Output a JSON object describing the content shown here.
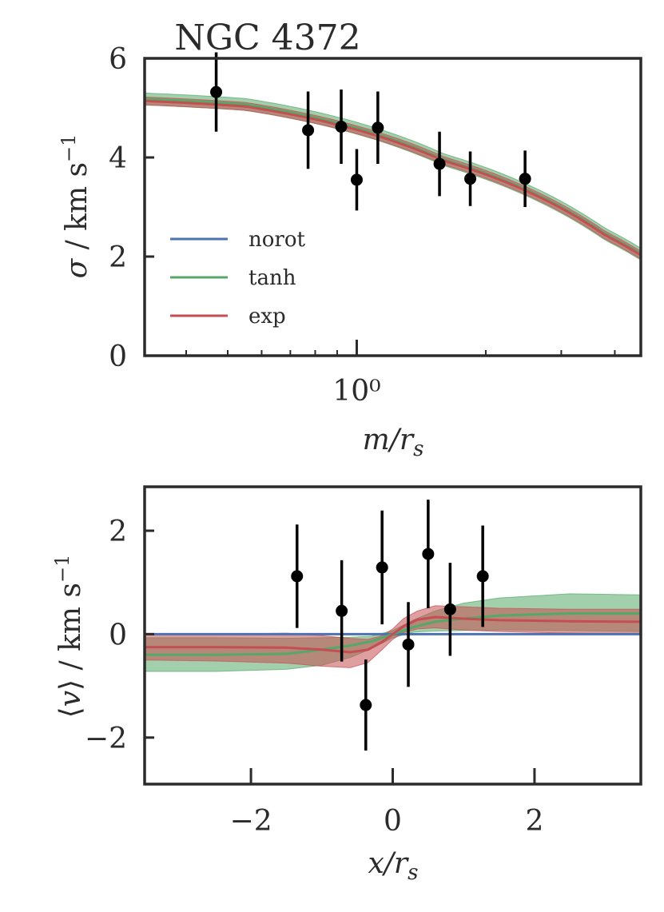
{
  "figure_title": "NGC 4372",
  "colors": {
    "norot": "#4c72b0",
    "tanh": "#55a868",
    "exp": "#c44e52",
    "axes": "#2b2b2b",
    "points": "#000000"
  },
  "chart_data": [
    {
      "type": "line",
      "title": "NGC 4372",
      "xlabel": "m/r_s",
      "ylabel": "σ / km s⁻¹",
      "xscale": "log",
      "xlim": [
        0.32,
        4.6
      ],
      "ylim": [
        0,
        6
      ],
      "x_tick_labels": [
        {
          "value": 1,
          "label": "10⁰"
        }
      ],
      "y_tick_labels": [
        {
          "value": 0,
          "label": "0"
        },
        {
          "value": 2,
          "label": "2"
        },
        {
          "value": 4,
          "label": "4"
        },
        {
          "value": 6,
          "label": "6"
        }
      ],
      "legend": {
        "placement": "lower-left",
        "entries": [
          "norot",
          "tanh",
          "exp"
        ]
      },
      "series": [
        {
          "name": "norot",
          "color": "#4c72b0",
          "x": [
            0.32,
            0.55,
            1.6,
            3.8,
            4.6
          ],
          "y": [
            5.15,
            5.05,
            3.95,
            2.45,
            2.05
          ]
        },
        {
          "name": "tanh",
          "color": "#55a868",
          "x": [
            0.32,
            0.55,
            1.6,
            3.8,
            4.6
          ],
          "y": [
            5.18,
            5.07,
            3.95,
            2.45,
            2.05
          ],
          "band": 0.12
        },
        {
          "name": "exp",
          "color": "#c44e52",
          "x": [
            0.32,
            0.55,
            1.6,
            3.8,
            4.6
          ],
          "y": [
            5.14,
            5.03,
            3.93,
            2.43,
            2.03
          ],
          "band": 0.08
        }
      ],
      "data_points": [
        {
          "x": 0.47,
          "y": 5.32,
          "err": 0.8
        },
        {
          "x": 0.77,
          "y": 4.55,
          "err": 0.78
        },
        {
          "x": 0.92,
          "y": 4.62,
          "err": 0.75
        },
        {
          "x": 1.0,
          "y": 3.55,
          "err": 0.62
        },
        {
          "x": 1.12,
          "y": 4.6,
          "err": 0.73
        },
        {
          "x": 1.56,
          "y": 3.87,
          "err": 0.65
        },
        {
          "x": 1.84,
          "y": 3.57,
          "err": 0.55
        },
        {
          "x": 2.47,
          "y": 3.57,
          "err": 0.57
        }
      ]
    },
    {
      "type": "line",
      "title": "",
      "xlabel": "x/r_s",
      "ylabel": "⟨v⟩ / km s⁻¹",
      "xlim": [
        -3.5,
        3.5
      ],
      "ylim": [
        -2.9,
        2.85
      ],
      "x_tick_labels": [
        {
          "value": -2,
          "label": "−2"
        },
        {
          "value": 0,
          "label": "0"
        },
        {
          "value": 2,
          "label": "2"
        }
      ],
      "y_tick_labels": [
        {
          "value": -2,
          "label": "−2"
        },
        {
          "value": 0,
          "label": "0"
        },
        {
          "value": 2,
          "label": "2"
        }
      ],
      "series": [
        {
          "name": "norot",
          "color": "#4c72b0",
          "x": [
            -3.5,
            3.5
          ],
          "y": [
            0,
            0
          ]
        },
        {
          "name": "tanh",
          "color": "#55a868",
          "x": [
            -3.5,
            -2.5,
            -1.5,
            -1.0,
            -0.6,
            -0.3,
            0.0,
            0.3,
            0.6,
            1.0,
            1.5,
            2.5,
            3.5
          ],
          "y": [
            -0.4,
            -0.4,
            -0.38,
            -0.3,
            -0.22,
            -0.14,
            0.0,
            0.14,
            0.24,
            0.3,
            0.36,
            0.4,
            0.4
          ],
          "band_lower": [
            -0.72,
            -0.72,
            -0.68,
            -0.6,
            -0.45,
            -0.28,
            -0.07,
            0.04,
            0.06,
            0.07,
            0.08,
            0.07,
            0.05
          ],
          "band_upper": [
            -0.07,
            -0.07,
            -0.08,
            -0.07,
            -0.06,
            -0.04,
            0.07,
            0.28,
            0.45,
            0.6,
            0.7,
            0.78,
            0.76
          ]
        },
        {
          "name": "exp",
          "color": "#c44e52",
          "x": [
            -3.5,
            -2.5,
            -1.5,
            -1.0,
            -0.6,
            -0.35,
            -0.15,
            0.0,
            0.15,
            0.35,
            0.6,
            1.0,
            1.5,
            2.5,
            3.5
          ],
          "y": [
            -0.25,
            -0.25,
            -0.26,
            -0.3,
            -0.35,
            -0.3,
            -0.15,
            0.0,
            0.15,
            0.28,
            0.33,
            0.3,
            0.27,
            0.25,
            0.24
          ],
          "band_lower": [
            -0.5,
            -0.52,
            -0.56,
            -0.62,
            -0.65,
            -0.55,
            -0.3,
            -0.1,
            0.03,
            0.1,
            0.12,
            0.08,
            0.05,
            0.02,
            0.0
          ],
          "band_upper": [
            0.0,
            0.0,
            0.02,
            -0.03,
            -0.08,
            -0.1,
            -0.03,
            0.1,
            0.3,
            0.45,
            0.55,
            0.53,
            0.5,
            0.48,
            0.48
          ]
        }
      ],
      "data_points": [
        {
          "x": -1.35,
          "y": 1.12,
          "err": 1.0
        },
        {
          "x": -0.72,
          "y": 0.45,
          "err": 0.98
        },
        {
          "x": -0.38,
          "y": -1.37,
          "err": 0.88
        },
        {
          "x": -0.15,
          "y": 1.29,
          "err": 1.1
        },
        {
          "x": 0.22,
          "y": -0.2,
          "err": 0.82
        },
        {
          "x": 0.5,
          "y": 1.55,
          "err": 1.05
        },
        {
          "x": 0.81,
          "y": 0.48,
          "err": 0.9
        },
        {
          "x": 1.27,
          "y": 1.12,
          "err": 0.98
        }
      ]
    }
  ]
}
